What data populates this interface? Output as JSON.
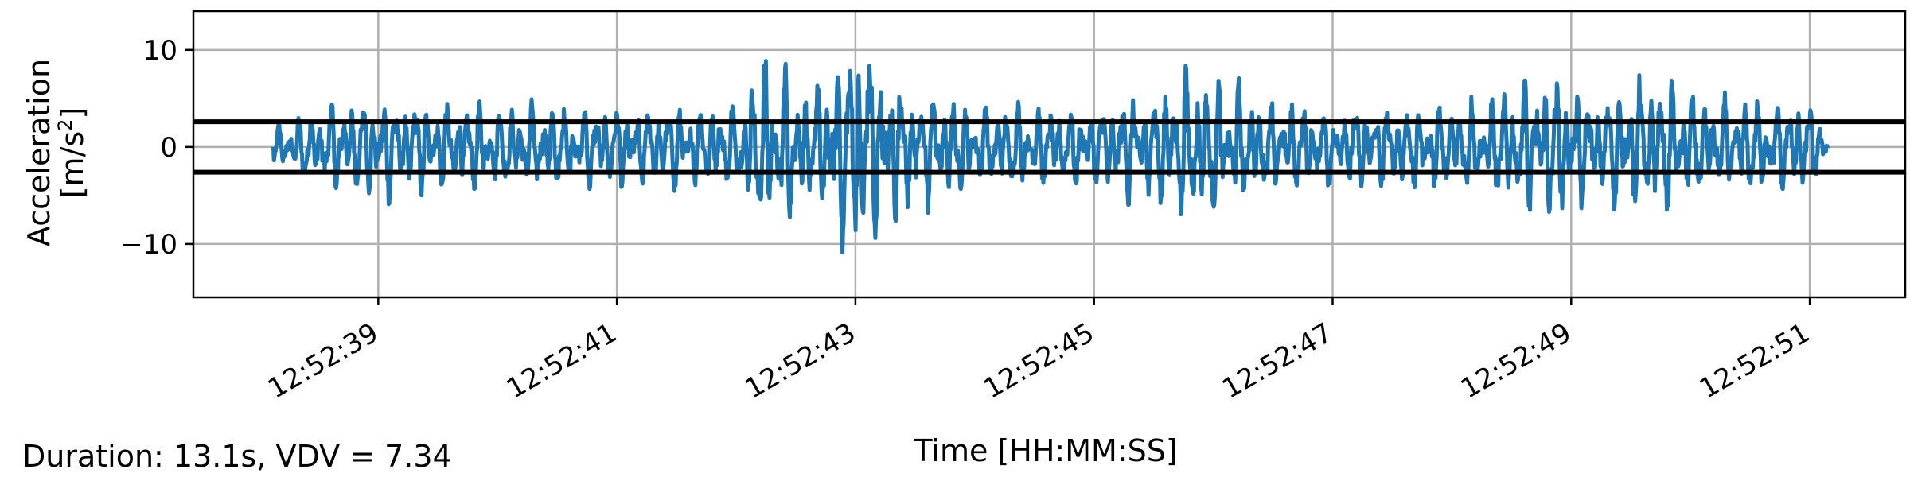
{
  "chart_data": {
    "type": "line",
    "xlabel": "Time [HH:MM:SS]",
    "ylabel": "Acceleration [m/s²]",
    "ylabel_line1": "Acceleration",
    "ylabel_line2_prefix": "[m/s",
    "ylabel_line2_sup": "2",
    "ylabel_line2_suffix": "]",
    "x_tick_labels": [
      "12:52:39",
      "12:52:41",
      "12:52:43",
      "12:52:45",
      "12:52:47",
      "12:52:49",
      "12:52:51"
    ],
    "x_tick_values_s": [
      39,
      41,
      43,
      45,
      47,
      49,
      51
    ],
    "y_ticks": [
      10,
      0,
      -10
    ],
    "y_tick_labels": [
      "10",
      "0",
      "−10"
    ],
    "xlim_s": [
      37.45,
      51.8
    ],
    "ylim": [
      -15.5,
      14
    ],
    "grid": true,
    "threshold_lines": [
      2.6,
      -2.6
    ],
    "series": [
      {
        "color": "#1f77b4",
        "t_start_s": 38.12,
        "t_end_s": 51.15,
        "envelope": [
          {
            "t": 38.12,
            "amp": 2.0
          },
          {
            "t": 38.5,
            "amp": 4.5
          },
          {
            "t": 39.0,
            "amp": 5.5
          },
          {
            "t": 40.0,
            "amp": 4.5
          },
          {
            "t": 41.0,
            "amp": 4.5
          },
          {
            "t": 42.0,
            "amp": 4.5
          },
          {
            "t": 42.25,
            "amp": 10.5
          },
          {
            "t": 42.6,
            "amp": 6.5
          },
          {
            "t": 43.05,
            "amp": 13.5
          },
          {
            "t": 43.3,
            "amp": 8.0
          },
          {
            "t": 44.0,
            "amp": 4.5
          },
          {
            "t": 45.0,
            "amp": 4.5
          },
          {
            "t": 45.85,
            "amp": 8.5
          },
          {
            "t": 46.5,
            "amp": 5.0
          },
          {
            "t": 47.5,
            "amp": 4.5
          },
          {
            "t": 48.3,
            "amp": 5.0
          },
          {
            "t": 48.75,
            "amp": 8.5
          },
          {
            "t": 49.2,
            "amp": 5.5
          },
          {
            "t": 49.6,
            "amp": 8.0
          },
          {
            "t": 50.2,
            "amp": 5.0
          },
          {
            "t": 51.0,
            "amp": 5.0
          },
          {
            "t": 51.15,
            "amp": 2.5
          }
        ]
      }
    ]
  },
  "footer": {
    "summary": "Duration: 13.1s, VDV = 7.34"
  }
}
